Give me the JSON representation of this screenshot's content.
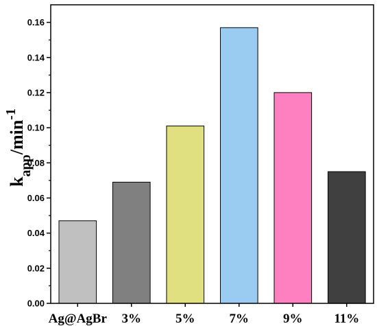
{
  "chart_data": {
    "type": "bar",
    "categories": [
      "Ag@AgBr",
      "3%",
      "5%",
      "7%",
      "9%",
      "11%"
    ],
    "values": [
      0.047,
      0.069,
      0.101,
      0.157,
      0.12,
      0.075
    ],
    "colors": [
      "#c0c0c0",
      "#808080",
      "#e0e080",
      "#99ccf0",
      "#ff80c0",
      "#404040"
    ],
    "ylim": [
      0,
      0.17
    ],
    "yticks": [
      "0.00",
      "0.02",
      "0.04",
      "0.06",
      "0.08",
      "0.10",
      "0.12",
      "0.14",
      "0.16"
    ],
    "ylabel": {
      "base": "k",
      "sub": "app",
      "unit": "/min",
      "sup": "-1"
    },
    "xlabel": "",
    "title": "",
    "grid": false,
    "legend": "none"
  }
}
